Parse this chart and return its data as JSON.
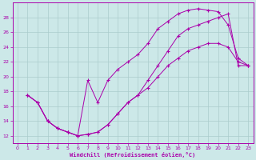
{
  "xlabel": "Windchill (Refroidissement éolien,°C)",
  "ylabel": "",
  "background_color": "#cce8e8",
  "grid_color": "#aacccc",
  "line_color": "#aa00aa",
  "xlim": [
    -0.5,
    23.5
  ],
  "ylim": [
    11,
    30
  ],
  "yticks": [
    12,
    14,
    16,
    18,
    20,
    22,
    24,
    26,
    28
  ],
  "xticks": [
    0,
    1,
    2,
    3,
    4,
    5,
    6,
    7,
    8,
    9,
    10,
    11,
    12,
    13,
    14,
    15,
    16,
    17,
    18,
    19,
    20,
    21,
    22,
    23
  ],
  "line1_x": [
    1,
    2,
    3,
    4,
    5,
    6,
    7,
    8,
    9,
    10,
    11,
    12,
    13,
    14,
    15,
    16,
    17,
    18,
    19,
    20,
    21,
    22,
    23
  ],
  "line1_y": [
    17.5,
    16.5,
    14.0,
    13.0,
    12.5,
    12.0,
    12.2,
    12.5,
    13.5,
    15.0,
    16.5,
    17.5,
    18.5,
    20.0,
    21.5,
    22.5,
    23.5,
    24.0,
    24.5,
    24.5,
    24.0,
    22.0,
    21.5
  ],
  "line2_x": [
    1,
    2,
    3,
    4,
    5,
    6,
    7,
    8,
    9,
    10,
    11,
    12,
    13,
    14,
    15,
    16,
    17,
    18,
    19,
    20,
    21,
    22,
    23
  ],
  "line2_y": [
    17.5,
    16.5,
    14.0,
    13.0,
    12.5,
    12.0,
    19.5,
    16.5,
    19.5,
    21.0,
    22.0,
    23.0,
    24.5,
    26.5,
    27.5,
    28.5,
    29.0,
    29.2,
    29.0,
    28.8,
    27.0,
    22.5,
    21.5
  ],
  "line3_x": [
    1,
    2,
    3,
    4,
    5,
    6,
    7,
    8,
    9,
    10,
    11,
    12,
    13,
    14,
    15,
    16,
    17,
    18,
    19,
    20,
    21,
    22,
    23
  ],
  "line3_y": [
    17.5,
    16.5,
    14.0,
    13.0,
    12.5,
    12.0,
    12.2,
    12.5,
    13.5,
    15.0,
    16.5,
    17.5,
    19.5,
    21.5,
    23.5,
    25.5,
    26.5,
    27.0,
    27.5,
    28.0,
    28.5,
    21.5,
    21.5
  ]
}
